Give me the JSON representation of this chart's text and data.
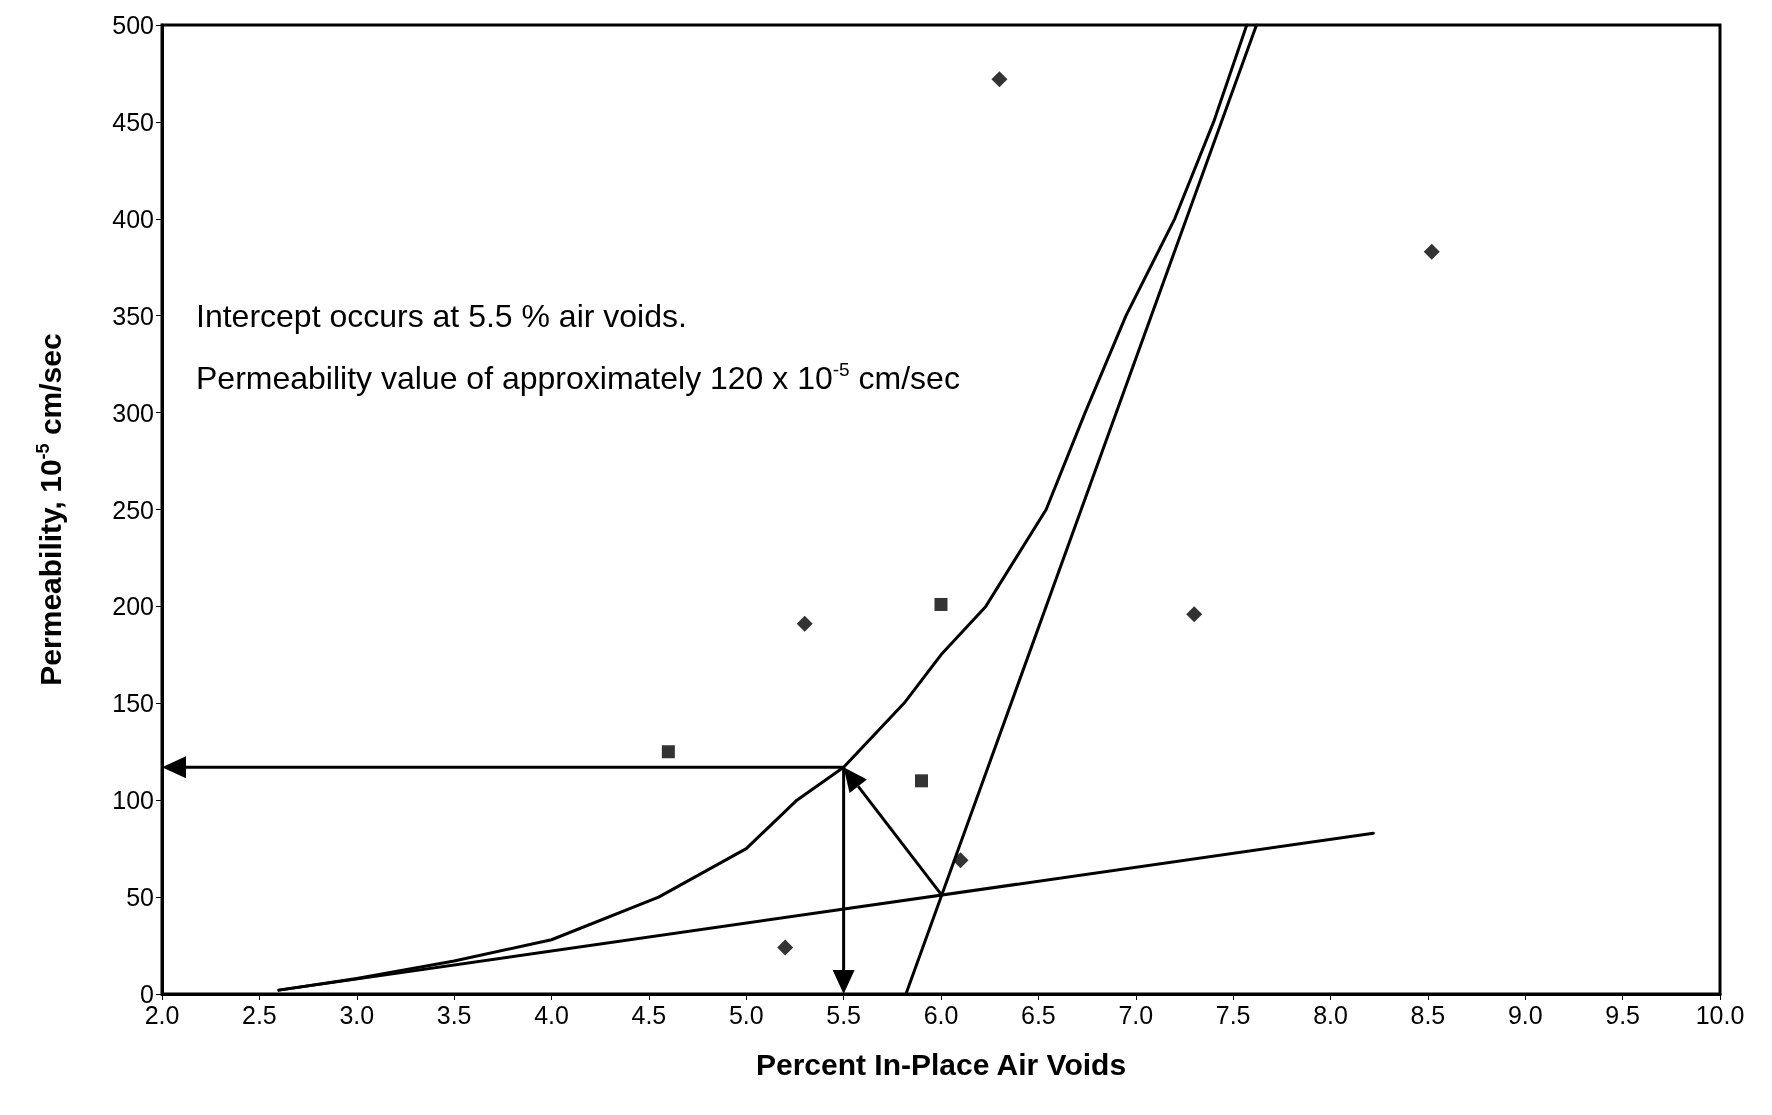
{
  "chart_data": {
    "type": "scatter",
    "xlabel": "Percent In-Place Air Voids",
    "ylabel": "Permeability, 10$^{-5}$ cm/sec",
    "annotations": [
      "Intercept occurs at 5.5 % air voids.",
      "Permeability value of approximately 120 x 10$^{-5}$ cm/sec"
    ],
    "series": [
      {
        "marker": "diamond",
        "color": "#000000",
        "x": [
          6.3,
          8.52,
          5.3,
          7.3,
          6.1,
          5.2
        ],
        "values": [
          472,
          383,
          191,
          196,
          69,
          24
        ]
      },
      {
        "marker": "square",
        "color": "#000000",
        "x": [
          4.6,
          6.0,
          5.9
        ],
        "values": [
          125,
          201,
          110
        ]
      },
      {
        "type": "line",
        "marker": "none",
        "line_style": "solid",
        "color": "#000000",
        "x": [
          2.6,
          3.0,
          3.5,
          4.0,
          4.55,
          5.0,
          5.26,
          5.5,
          5.81,
          6.0,
          6.23,
          6.54,
          6.74,
          6.95,
          7.2,
          7.4,
          7.57
        ],
        "values": [
          2,
          8,
          17,
          28,
          50,
          75,
          100,
          117,
          150,
          175,
          200,
          250,
          300,
          350,
          400,
          450,
          500
        ]
      },
      {
        "type": "line",
        "marker": "none",
        "line_style": "solid",
        "color": "#000000",
        "x": [
          5.82,
          7.62
        ],
        "values": [
          0,
          500
        ]
      },
      {
        "type": "line",
        "marker": "none",
        "line_style": "solid",
        "color": "#000000",
        "x": [
          2.6,
          8.22
        ],
        "values": [
          2,
          83
        ]
      }
    ],
    "xlim": [
      2,
      10
    ],
    "xticks": [
      {
        "value": 2,
        "label": "2.0"
      },
      {
        "value": 2.5,
        "label": "2.5"
      },
      {
        "value": 3,
        "label": "3.0"
      },
      {
        "value": 3.5,
        "label": "3.5"
      },
      {
        "value": 4,
        "label": "4.0"
      },
      {
        "value": 4.5,
        "label": "4.5"
      },
      {
        "value": 5,
        "label": "5.0"
      },
      {
        "value": 5.5,
        "label": "5.5"
      },
      {
        "value": 6,
        "label": "6.0"
      },
      {
        "value": 6.5,
        "label": "6.5"
      },
      {
        "value": 7,
        "label": "7.0"
      },
      {
        "value": 7.5,
        "label": "7.5"
      },
      {
        "value": 8,
        "label": "8.0"
      },
      {
        "value": 8.5,
        "label": "8.5"
      },
      {
        "value": 9,
        "label": "9.0"
      },
      {
        "value": 9.5,
        "label": "9.5"
      },
      {
        "value": 10,
        "label": "10.0"
      }
    ],
    "ylim": [
      0,
      500
    ],
    "yticks": [
      0,
      50,
      100,
      150,
      200,
      250,
      300,
      350,
      400,
      450,
      500
    ],
    "ref_lines": [
      {
        "axis": "x",
        "value": 5.5,
        "color": "#000000"
      },
      {
        "axis": "y",
        "value": 117,
        "color": "#000000"
      }
    ],
    "grid": false
  }
}
